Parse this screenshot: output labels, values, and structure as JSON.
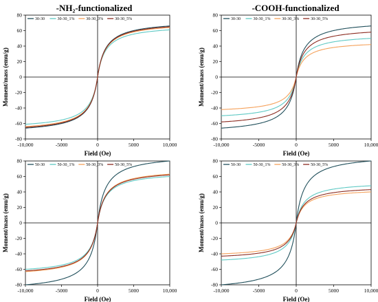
{
  "panel_titles": [
    "-NH₂-functionalized",
    "-COOH-functionalized"
  ],
  "colors": {
    "s1": "#1f4e5a",
    "s2": "#5ec9c4",
    "s3": "#f5a15a",
    "s4": "#8b2a1f"
  },
  "chart_data": [
    {
      "type": "line",
      "title": "-NH₂-functionalized",
      "xlabel": "Field (Oe)",
      "ylabel": "Moment/mass (emu/g)",
      "xlim": [
        -10000,
        10000
      ],
      "ylim": [
        -80,
        80
      ],
      "xticks": [
        "-10,000",
        "-5000",
        "0",
        "5000",
        "10,000"
      ],
      "yticks": [
        "-80",
        "-60",
        "-40",
        "-20",
        "0",
        "20",
        "40",
        "60",
        "80"
      ],
      "legend": "top-left",
      "grid": false,
      "series": [
        {
          "name": "30-30",
          "ms": 66,
          "color_key": "s1"
        },
        {
          "name": "30-30_1%",
          "ms": 61,
          "color_key": "s2"
        },
        {
          "name": "30-30_3%",
          "ms": 64,
          "color_key": "s3"
        },
        {
          "name": "30-30_5%",
          "ms": 65,
          "color_key": "s4"
        }
      ]
    },
    {
      "type": "line",
      "title": "-COOH-functionalized",
      "xlabel": "Field (Oe)",
      "ylabel": "Moment/mass (emu/g)",
      "xlim": [
        -10000,
        10000
      ],
      "ylim": [
        -80,
        80
      ],
      "xticks": [
        "-10,000",
        "-5000",
        "0",
        "5000",
        "10,000"
      ],
      "yticks": [
        "-80",
        "-60",
        "-40",
        "-20",
        "0",
        "20",
        "40",
        "60",
        "80"
      ],
      "legend": "top-left",
      "grid": false,
      "series": [
        {
          "name": "30-30",
          "ms": 66,
          "color_key": "s1"
        },
        {
          "name": "30-30_1%",
          "ms": 50,
          "color_key": "s2"
        },
        {
          "name": "30-30_3%",
          "ms": 42,
          "color_key": "s3"
        },
        {
          "name": "30-30_5%",
          "ms": 58,
          "color_key": "s4"
        }
      ]
    },
    {
      "type": "line",
      "title": "",
      "xlabel": "Field (Oe)",
      "ylabel": "Moment/mass (emu/g)",
      "xlim": [
        -10000,
        10000
      ],
      "ylim": [
        -80,
        80
      ],
      "xticks": [
        "-10,000",
        "-5000",
        "0",
        "5000",
        "10,000"
      ],
      "yticks": [
        "-80",
        "-60",
        "-40",
        "-20",
        "0",
        "20",
        "40",
        "60",
        "80"
      ],
      "legend": "top-left",
      "grid": false,
      "series": [
        {
          "name": "50-30",
          "ms": 80,
          "color_key": "s1"
        },
        {
          "name": "50-30_1%",
          "ms": 60,
          "color_key": "s2"
        },
        {
          "name": "50-30_3%",
          "ms": 63,
          "color_key": "s3"
        },
        {
          "name": "50-30_5%",
          "ms": 62,
          "color_key": "s4"
        }
      ]
    },
    {
      "type": "line",
      "title": "",
      "xlabel": "Field (Oe)",
      "ylabel": "Moment/mass (emu/g)",
      "xlim": [
        -10000,
        10000
      ],
      "ylim": [
        -80,
        80
      ],
      "xticks": [
        "-10,000",
        "-5000",
        "0",
        "5000",
        "10,000"
      ],
      "yticks": [
        "-80",
        "-60",
        "-40",
        "-20",
        "0",
        "20",
        "40",
        "60",
        "80"
      ],
      "legend": "top-left",
      "grid": false,
      "series": [
        {
          "name": "50-30",
          "ms": 80,
          "color_key": "s1"
        },
        {
          "name": "50-30_1%",
          "ms": 48,
          "color_key": "s2"
        },
        {
          "name": "50-30_3%",
          "ms": 40,
          "color_key": "s3"
        },
        {
          "name": "50-30_5%",
          "ms": 43,
          "color_key": "s4"
        }
      ]
    }
  ]
}
